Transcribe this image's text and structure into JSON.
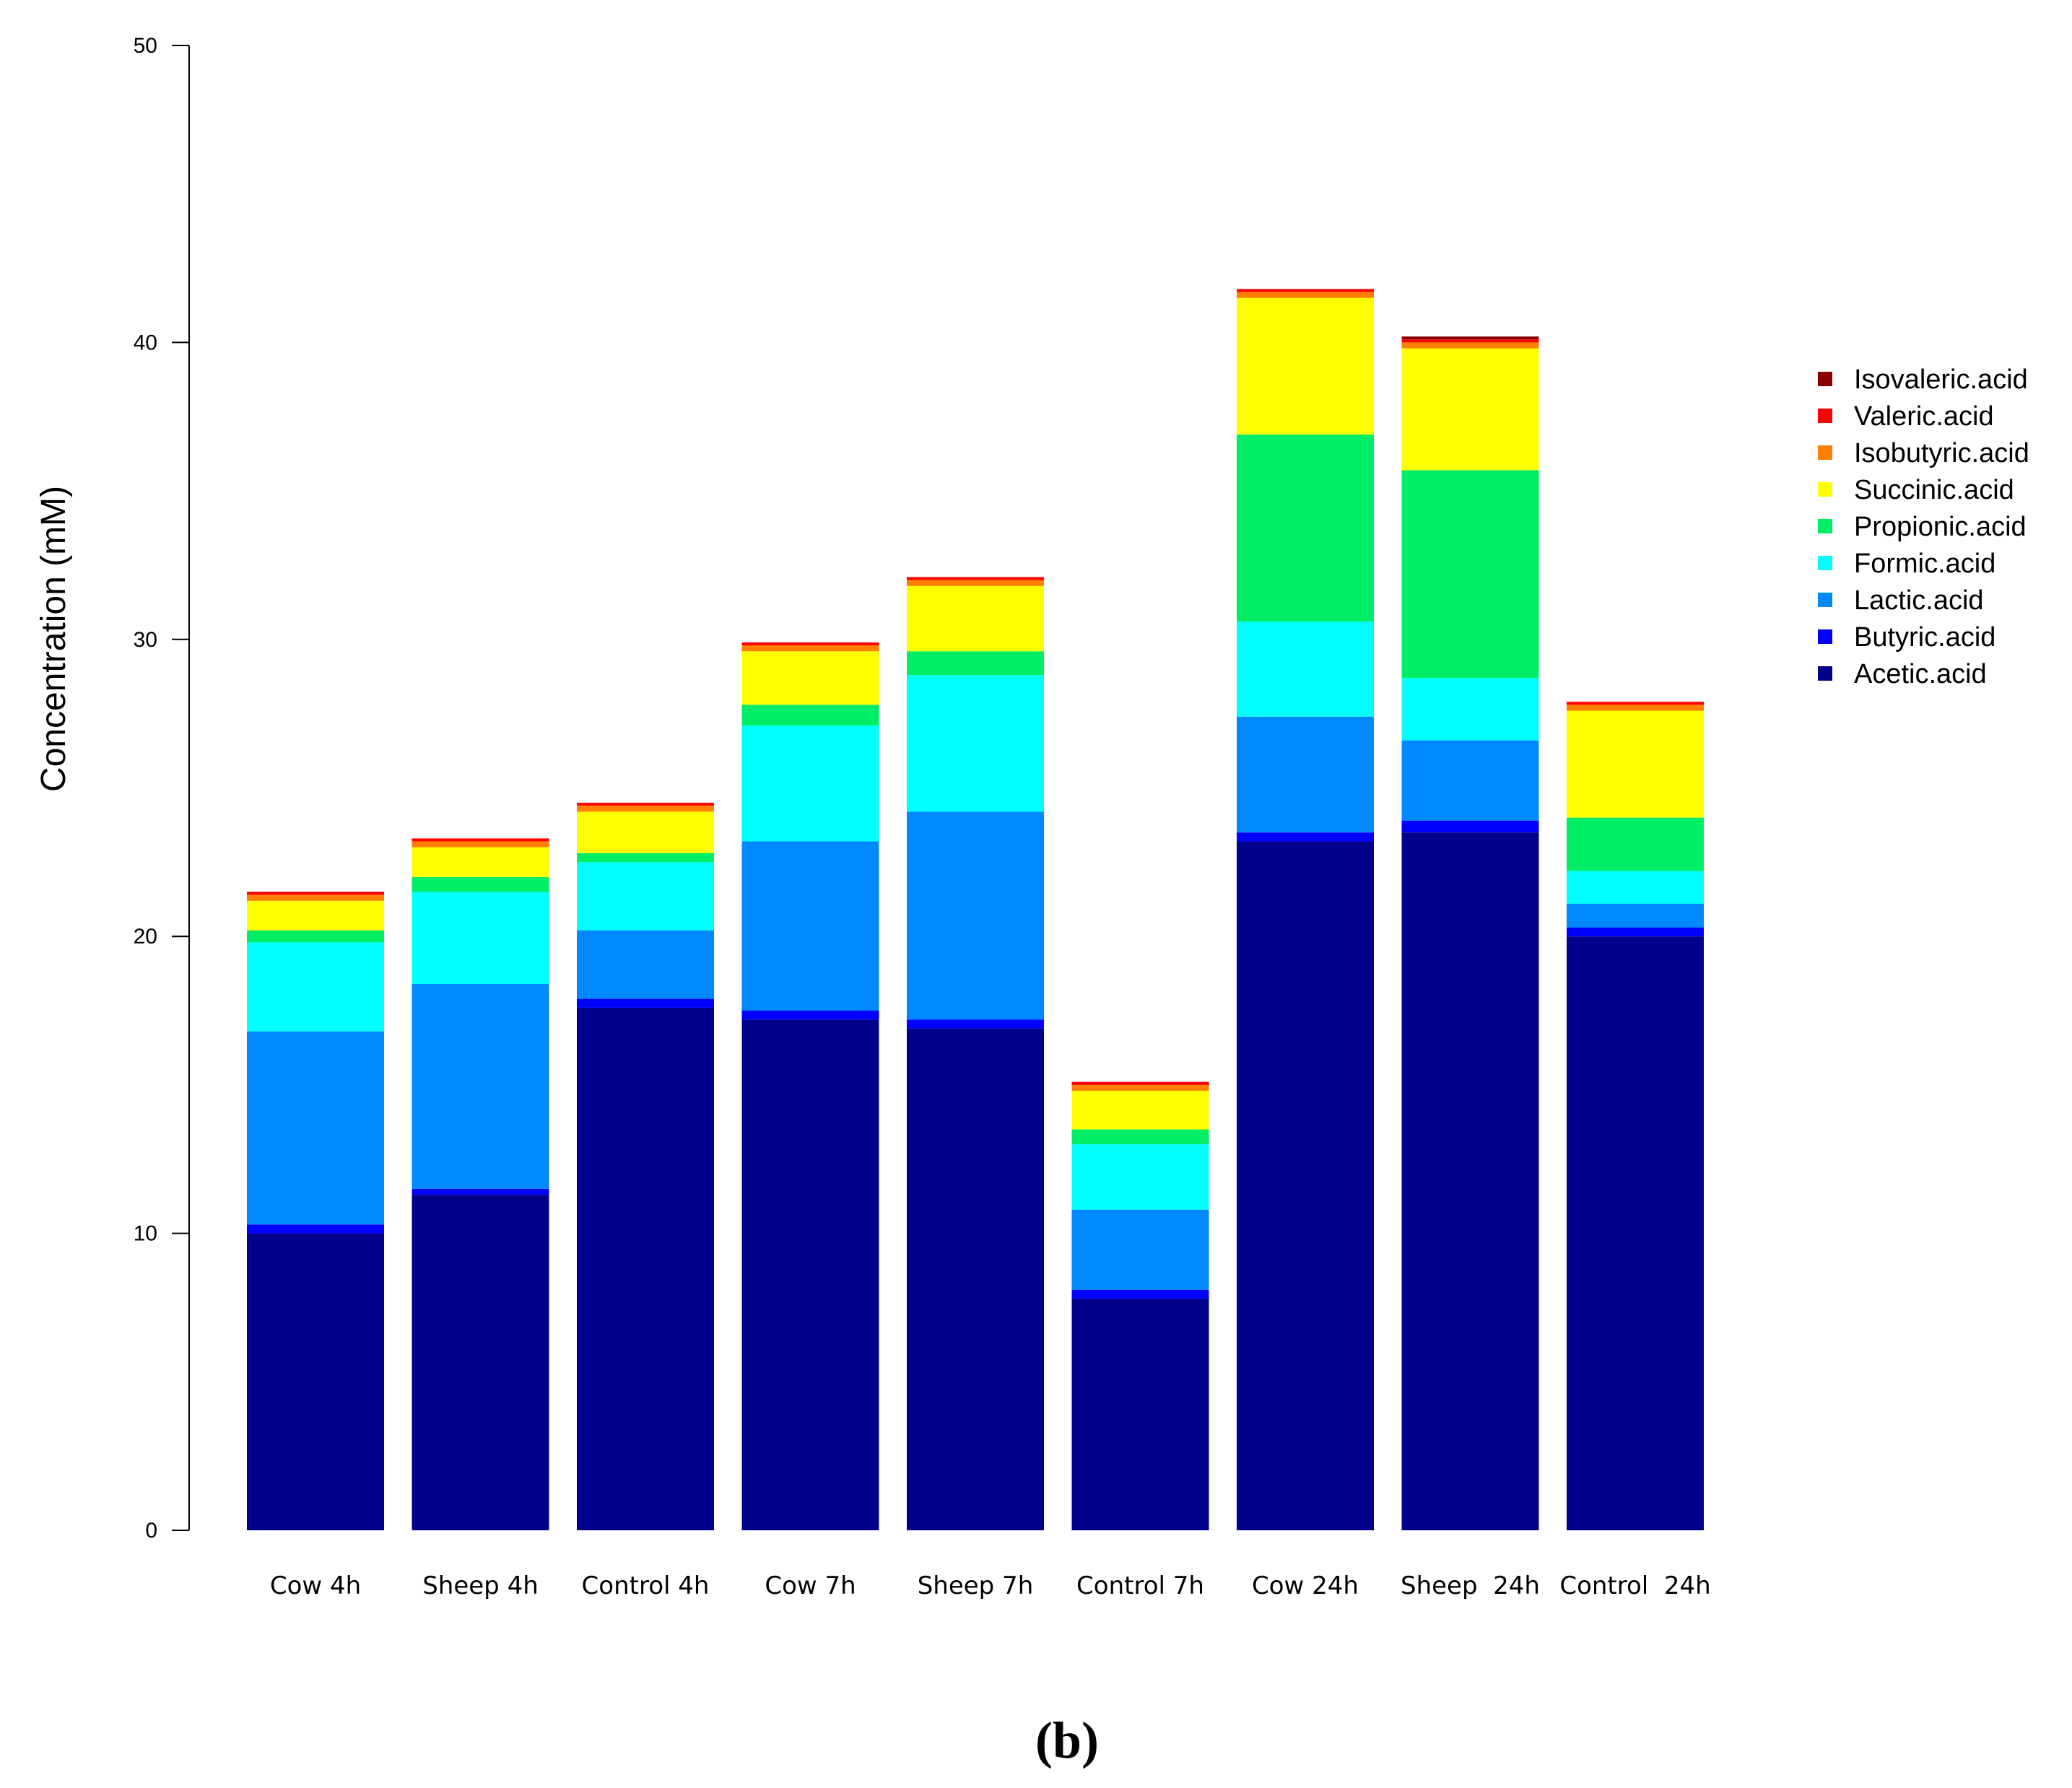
{
  "chart_data": {
    "type": "bar",
    "stacked": true,
    "title": "",
    "panel_label": "(b)",
    "xlabel": "",
    "ylabel": "Concentration (mM)",
    "ylim": [
      0,
      50
    ],
    "yticks": [
      0,
      10,
      20,
      30,
      40,
      50
    ],
    "grid": false,
    "legend_position": "right",
    "categories": [
      "Cow 4h",
      "Sheep 4h",
      "Control 4h",
      "Cow 7h",
      "Sheep 7h",
      "Control 7h",
      "Cow 24h",
      "Sheep  24h",
      "Control  24h"
    ],
    "series": [
      {
        "name": "Acetic.acid",
        "color": "#00008B",
        "values": [
          10.0,
          11.3,
          17.6,
          17.2,
          16.9,
          7.8,
          23.2,
          23.5,
          20.0
        ]
      },
      {
        "name": "Butyric.acid",
        "color": "#0000FF",
        "values": [
          0.3,
          0.2,
          0.3,
          0.3,
          0.3,
          0.3,
          0.3,
          0.4,
          0.3
        ]
      },
      {
        "name": "Lactic.acid",
        "color": "#0088FF",
        "values": [
          6.5,
          6.9,
          2.3,
          5.7,
          7.0,
          2.7,
          3.9,
          2.7,
          0.8
        ]
      },
      {
        "name": "Formic.acid",
        "color": "#00FFFF",
        "values": [
          3.0,
          3.1,
          2.3,
          3.9,
          4.6,
          2.2,
          3.2,
          2.1,
          1.1
        ]
      },
      {
        "name": "Propionic.acid",
        "color": "#00EE66",
        "values": [
          0.4,
          0.5,
          0.3,
          0.7,
          0.8,
          0.5,
          6.3,
          7.0,
          1.8
        ]
      },
      {
        "name": "Succinic.acid",
        "color": "#FFFF00",
        "values": [
          1.0,
          1.0,
          1.4,
          1.8,
          2.2,
          1.3,
          4.6,
          4.1,
          3.6
        ]
      },
      {
        "name": "Isobutyric.acid",
        "color": "#FF7F00",
        "values": [
          0.2,
          0.2,
          0.2,
          0.2,
          0.2,
          0.2,
          0.2,
          0.2,
          0.2
        ]
      },
      {
        "name": "Valeric.acid",
        "color": "#FF0000",
        "values": [
          0.1,
          0.1,
          0.1,
          0.1,
          0.1,
          0.1,
          0.1,
          0.1,
          0.1
        ]
      },
      {
        "name": "Isovaleric.acid",
        "color": "#8B0000",
        "values": [
          0.0,
          0.0,
          0.0,
          0.0,
          0.0,
          0.0,
          0.0,
          0.1,
          0.0
        ]
      }
    ]
  }
}
